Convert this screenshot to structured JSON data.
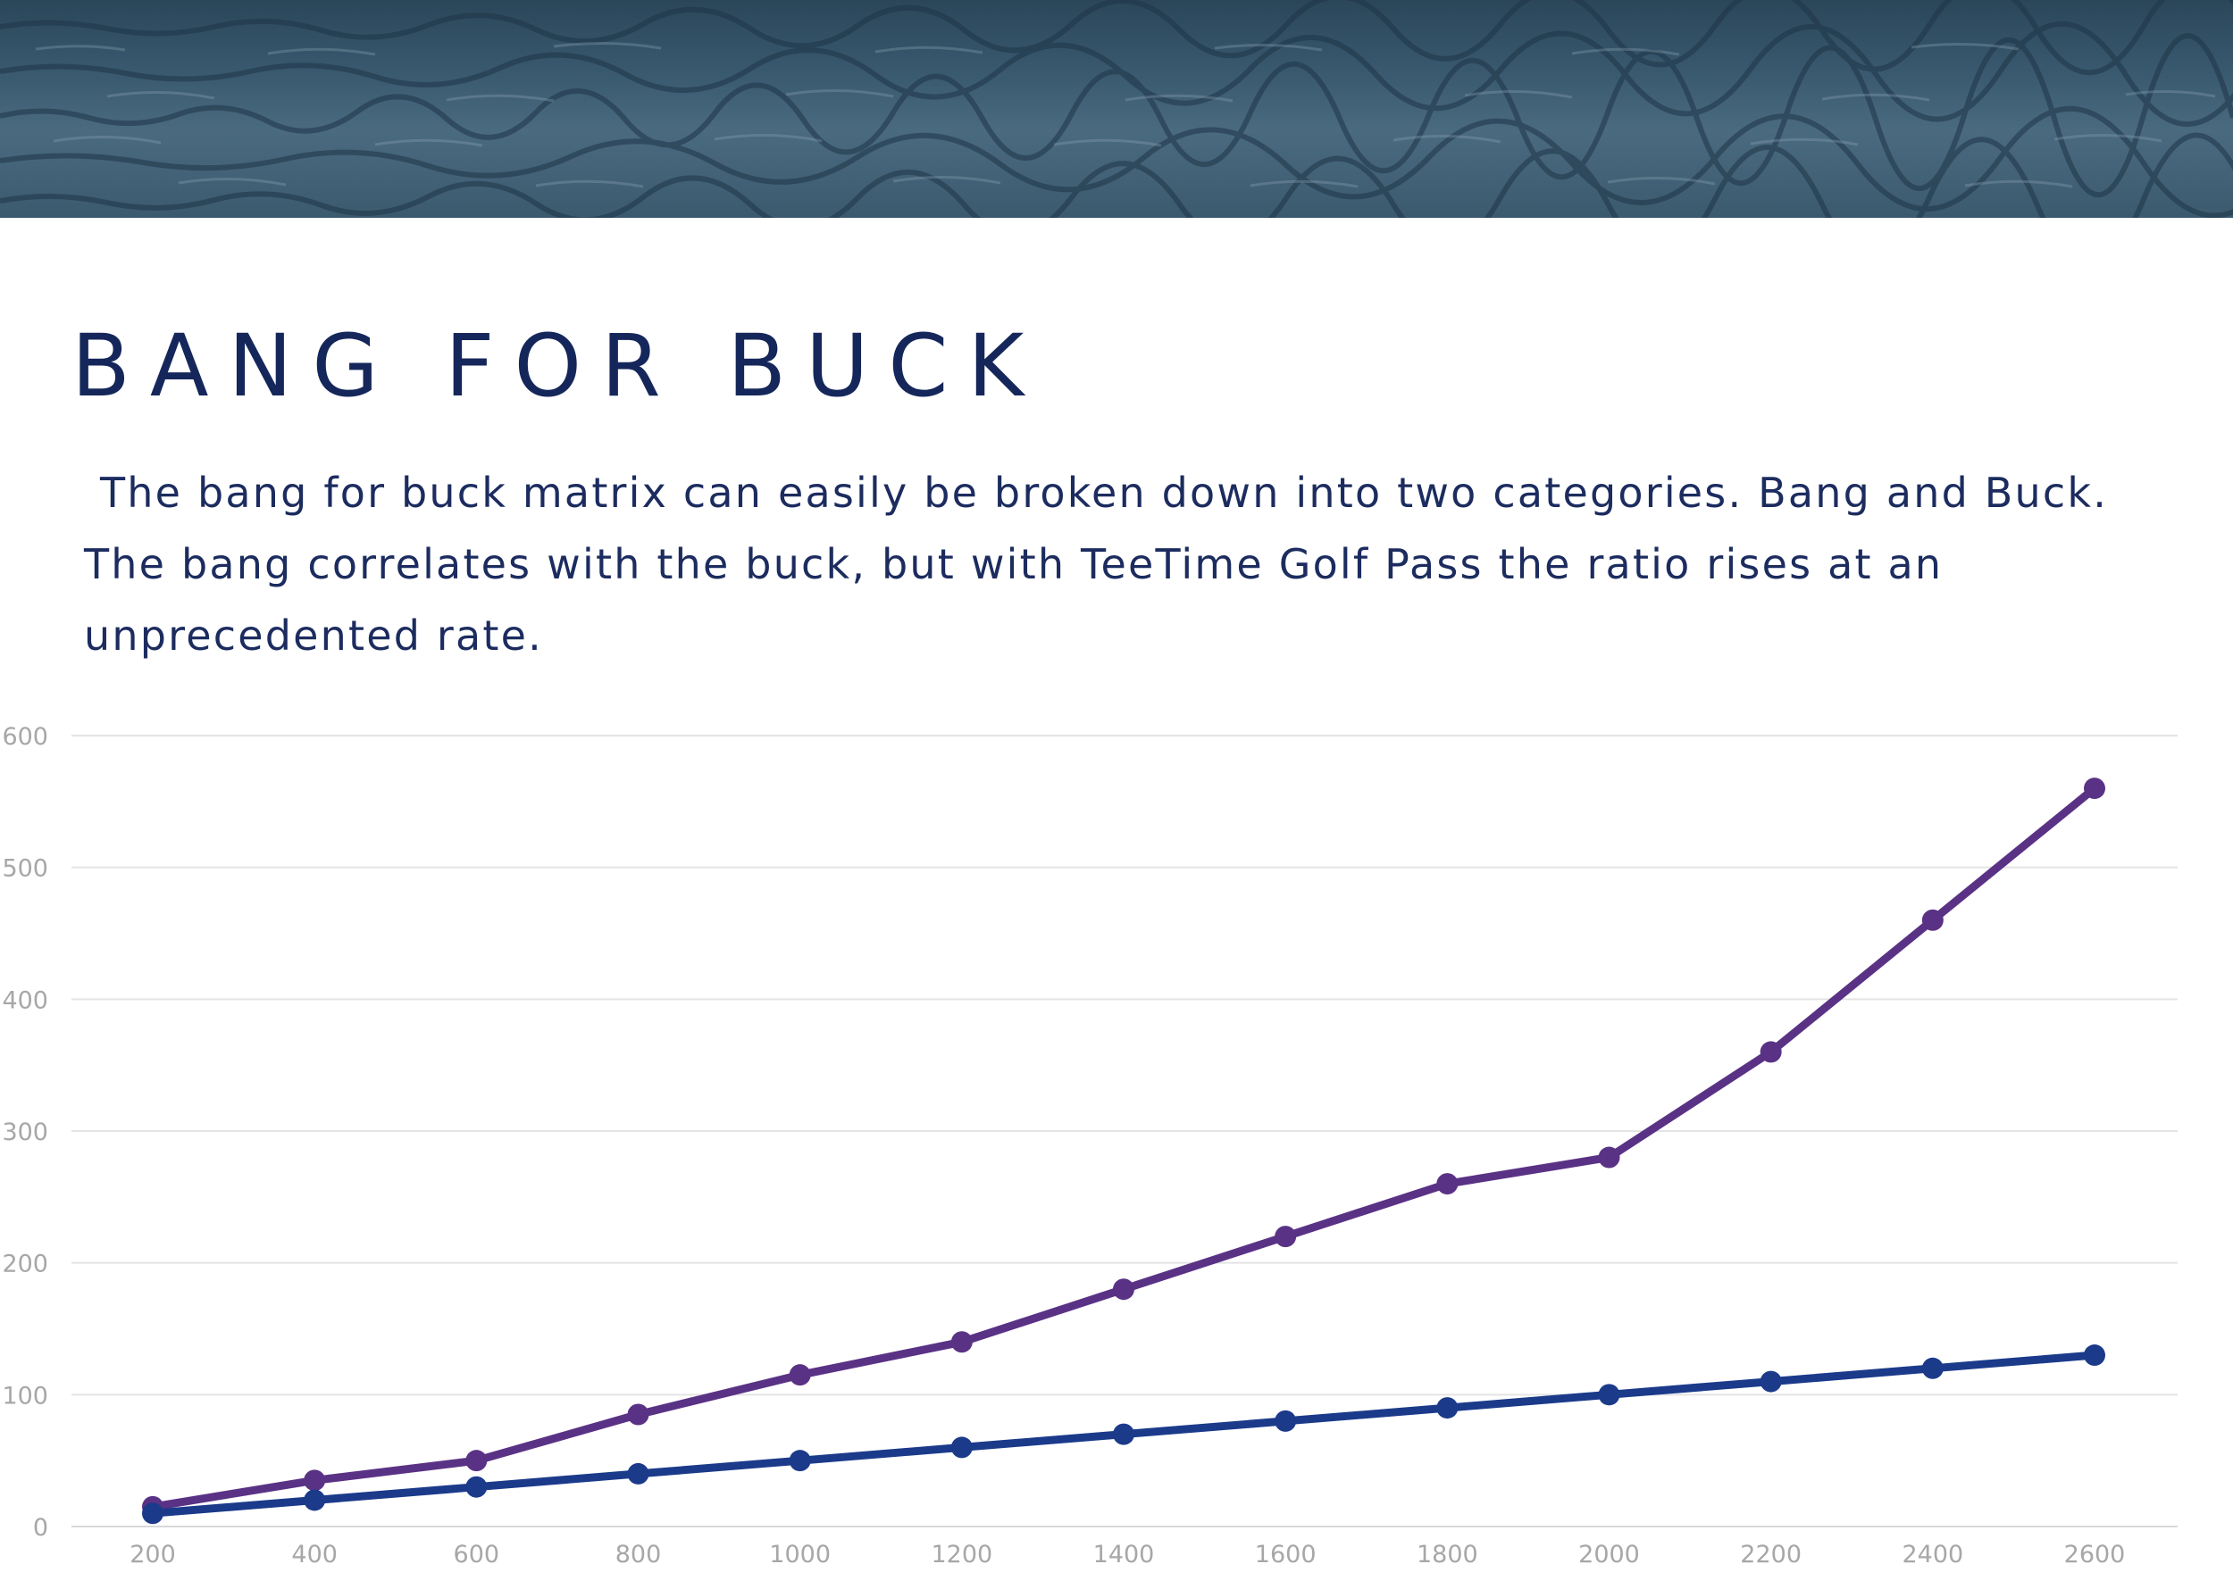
{
  "banner": {
    "image": "ocean-water-photo"
  },
  "header": {
    "title": "BANG FOR BUCK"
  },
  "intro": {
    "text": "The bang for buck matrix can easily be broken down into two categories. Bang and Buck. The bang correlates with the buck, but with TeeTime Golf Pass the ratio rises at an unprecedented rate."
  },
  "chart_data": {
    "type": "line",
    "title": "",
    "xlabel": "",
    "ylabel": "",
    "x": [
      200,
      400,
      600,
      800,
      1000,
      1200,
      1400,
      1600,
      1800,
      2000,
      2200,
      2400,
      2600
    ],
    "ylim": [
      0,
      600
    ],
    "yticks": [
      0,
      100,
      200,
      300,
      400,
      500,
      600
    ],
    "grid": true,
    "legend": "none",
    "series": [
      {
        "color": "#5a3285",
        "values": [
          15,
          35,
          50,
          85,
          115,
          140,
          180,
          220,
          260,
          280,
          360,
          460,
          560
        ]
      },
      {
        "color": "#1b3a8a",
        "values": [
          10,
          20,
          30,
          40,
          50,
          60,
          70,
          80,
          90,
          100,
          110,
          120,
          130
        ]
      }
    ],
    "colors": {
      "grid": "#e4e4e4",
      "tick_text": "#a7a7a7"
    }
  }
}
